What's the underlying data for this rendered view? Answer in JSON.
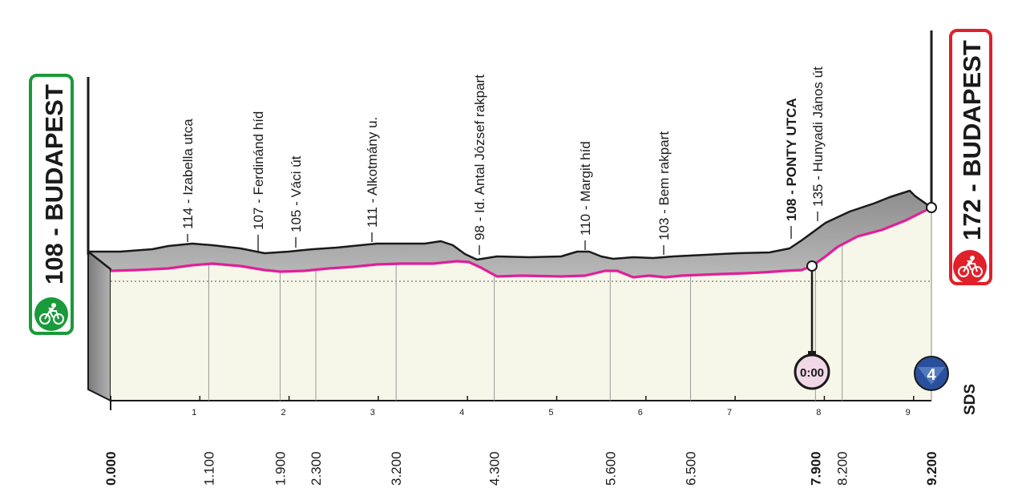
{
  "start": {
    "elevation_city": "108 - BUDAPEST",
    "border_color": "#1a9a3a",
    "icon": "cyclist-icon"
  },
  "finish": {
    "elevation_city": "172 - BUDAPEST",
    "border_color": "#e0202a",
    "icon": "cyclist-icon"
  },
  "waypoints": [
    {
      "label": "114 - Izabella utca",
      "bold": false
    },
    {
      "label": "107 - Ferdinánd híd",
      "bold": false
    },
    {
      "label": "105 - Váci út",
      "bold": false
    },
    {
      "label": "111 - Alkotmány u.",
      "bold": false
    },
    {
      "label": "98 - Id. Antal József rakpart",
      "bold": false
    },
    {
      "label": "110 - Margit híd",
      "bold": false
    },
    {
      "label": "103 - Bem rakpart",
      "bold": false
    },
    {
      "label": "108 - PONTY UTCA",
      "bold": true
    },
    {
      "label": "135 - Hunyadi János út",
      "bold": false
    }
  ],
  "km_axis": {
    "ticks": [
      "1",
      "2",
      "3",
      "4",
      "5",
      "6",
      "7",
      "8",
      "9"
    ],
    "distances": [
      {
        "label": "0.000",
        "bold": true
      },
      {
        "label": "1.100",
        "bold": false
      },
      {
        "label": "1.900",
        "bold": false
      },
      {
        "label": "2.300",
        "bold": false
      },
      {
        "label": "3.200",
        "bold": false
      },
      {
        "label": "4.300",
        "bold": false
      },
      {
        "label": "5.600",
        "bold": false
      },
      {
        "label": "6.500",
        "bold": false
      },
      {
        "label": "7.900",
        "bold": true
      },
      {
        "label": "8.200",
        "bold": false
      },
      {
        "label": "9.200",
        "bold": true
      }
    ]
  },
  "intermediate_time_check": {
    "label": "0:00",
    "icon": "stopwatch-icon"
  },
  "climb_marker": {
    "number": "4",
    "sponsor": "SDS",
    "icon": "climb-category-icon"
  },
  "colors": {
    "profile_line": "#e0209a",
    "profile_fill": "#f6f7e8",
    "relief": "#a9a9a9",
    "start_green": "#1a9a3a",
    "finish_red": "#e0202a",
    "climb_blue": "#2a4f9c"
  }
}
